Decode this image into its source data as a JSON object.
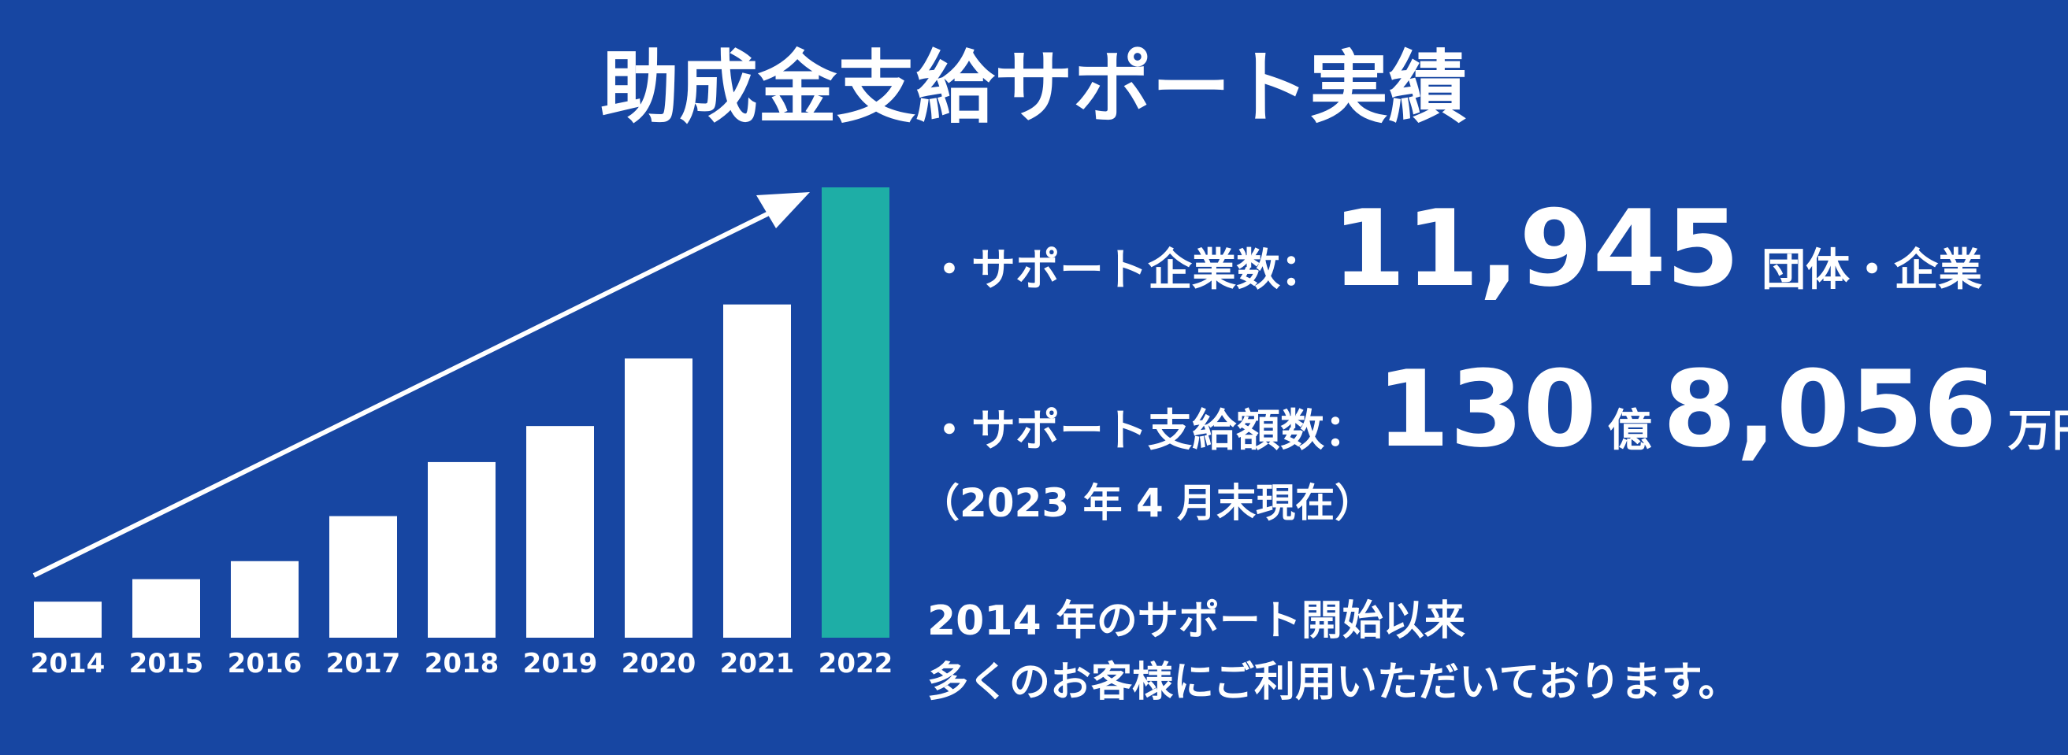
{
  "title": "助成金支給サポート実績",
  "chart_data": {
    "type": "bar",
    "categories": [
      "2014",
      "2015",
      "2016",
      "2017",
      "2018",
      "2019",
      "2020",
      "2021",
      "2022"
    ],
    "values": [
      8,
      13,
      17,
      27,
      39,
      47,
      62,
      74,
      100
    ],
    "colors": [
      "#ffffff",
      "#ffffff",
      "#ffffff",
      "#ffffff",
      "#ffffff",
      "#ffffff",
      "#ffffff",
      "#ffffff",
      "#1eaea6"
    ]
  },
  "stats": {
    "companies": {
      "label": "・サポート企業数：",
      "value": "11,945",
      "unit": "団体・企業"
    },
    "amount": {
      "label": "・サポート支給額数：",
      "value1": "130",
      "unit1": "億",
      "value2": "8,056",
      "unit2": "万円"
    },
    "note": "（2023 年 4 月末現在）"
  },
  "message": [
    "2014 年のサポート開始以来",
    "多くのお客様にご利用いただいております。"
  ]
}
